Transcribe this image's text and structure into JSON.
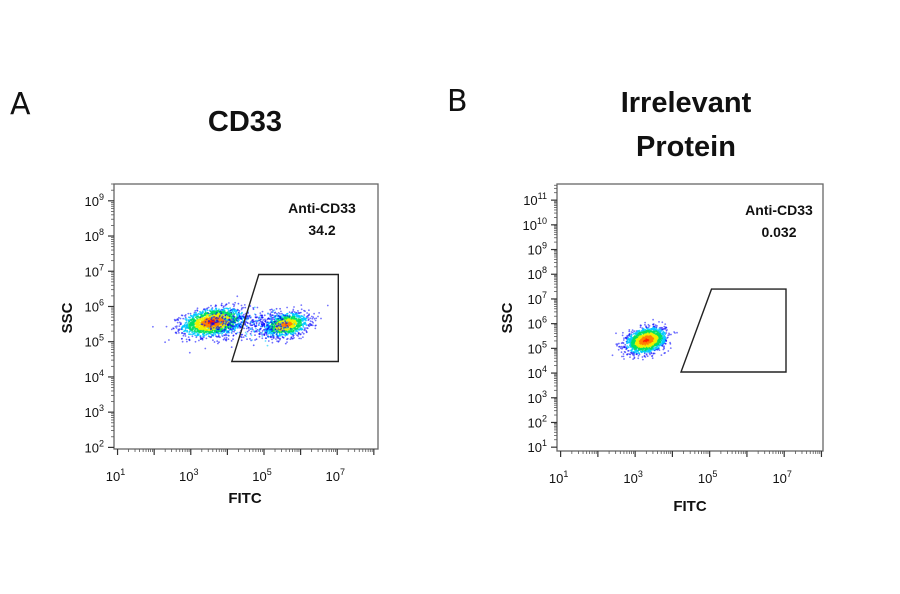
{
  "figure": {
    "panels": [
      {
        "letter": "A",
        "title_lines": [
          "CD33"
        ]
      },
      {
        "letter": "B",
        "title_lines": [
          "Irrelevant",
          "Protein"
        ]
      }
    ]
  },
  "chart_data": [
    {
      "type": "scatter",
      "subtype": "flow-cytometry-density-plot",
      "title": "CD33",
      "xlabel": "FITC",
      "ylabel": "SSC",
      "x_scale": "log10",
      "y_scale": "log10",
      "xlim": [
        8,
        130000000.0
      ],
      "ylim": [
        90,
        3000000000.0
      ],
      "x_tick_exponents": [
        1,
        3,
        5,
        7
      ],
      "y_tick_exponents": [
        2,
        3,
        4,
        5,
        6,
        7,
        8,
        9
      ],
      "grid": false,
      "gate": {
        "name": "Anti-CD33",
        "percent": "34.2",
        "vertices": [
          [
            72000,
            8100000.0
          ],
          [
            10700000.0,
            8100000.0
          ],
          [
            10700000.0,
            27500
          ],
          [
            13200,
            27500
          ]
        ]
      },
      "populations": [
        {
          "center": [
            4000,
            360000
          ],
          "log_spread": [
            0.45,
            0.22
          ],
          "relative_size": 0.62
        },
        {
          "center": [
            400000,
            300000
          ],
          "log_spread": [
            0.35,
            0.2
          ],
          "relative_size": 0.38
        }
      ],
      "color_scale": [
        "#0000ff",
        "#00c8ff",
        "#00e060",
        "#f0f000",
        "#ff8000",
        "#ff2000"
      ]
    },
    {
      "type": "scatter",
      "subtype": "flow-cytometry-density-plot",
      "title": "Irrelevant Protein",
      "xlabel": "FITC",
      "ylabel": "SSC",
      "x_scale": "log10",
      "y_scale": "log10",
      "xlim": [
        8,
        110000000.0
      ],
      "ylim": [
        7,
        450000000000.0
      ],
      "x_tick_exponents": [
        1,
        3,
        5,
        7
      ],
      "y_tick_exponents": [
        1,
        2,
        3,
        4,
        5,
        6,
        7,
        8,
        9,
        10,
        11
      ],
      "grid": false,
      "gate": {
        "name": "Anti-CD33",
        "percent": "0.032",
        "vertices": [
          [
            112000,
            25000000.0
          ],
          [
            11200000.0,
            25000000.0
          ],
          [
            11200000.0,
            11000
          ],
          [
            17000,
            11000
          ]
        ]
      },
      "populations": [
        {
          "center": [
            2000,
            210000
          ],
          "log_spread": [
            0.28,
            0.28
          ],
          "relative_size": 1.0
        }
      ],
      "color_scale": [
        "#0000ff",
        "#00c8ff",
        "#00e060",
        "#f0f000",
        "#ff8000",
        "#ff2000"
      ]
    }
  ]
}
